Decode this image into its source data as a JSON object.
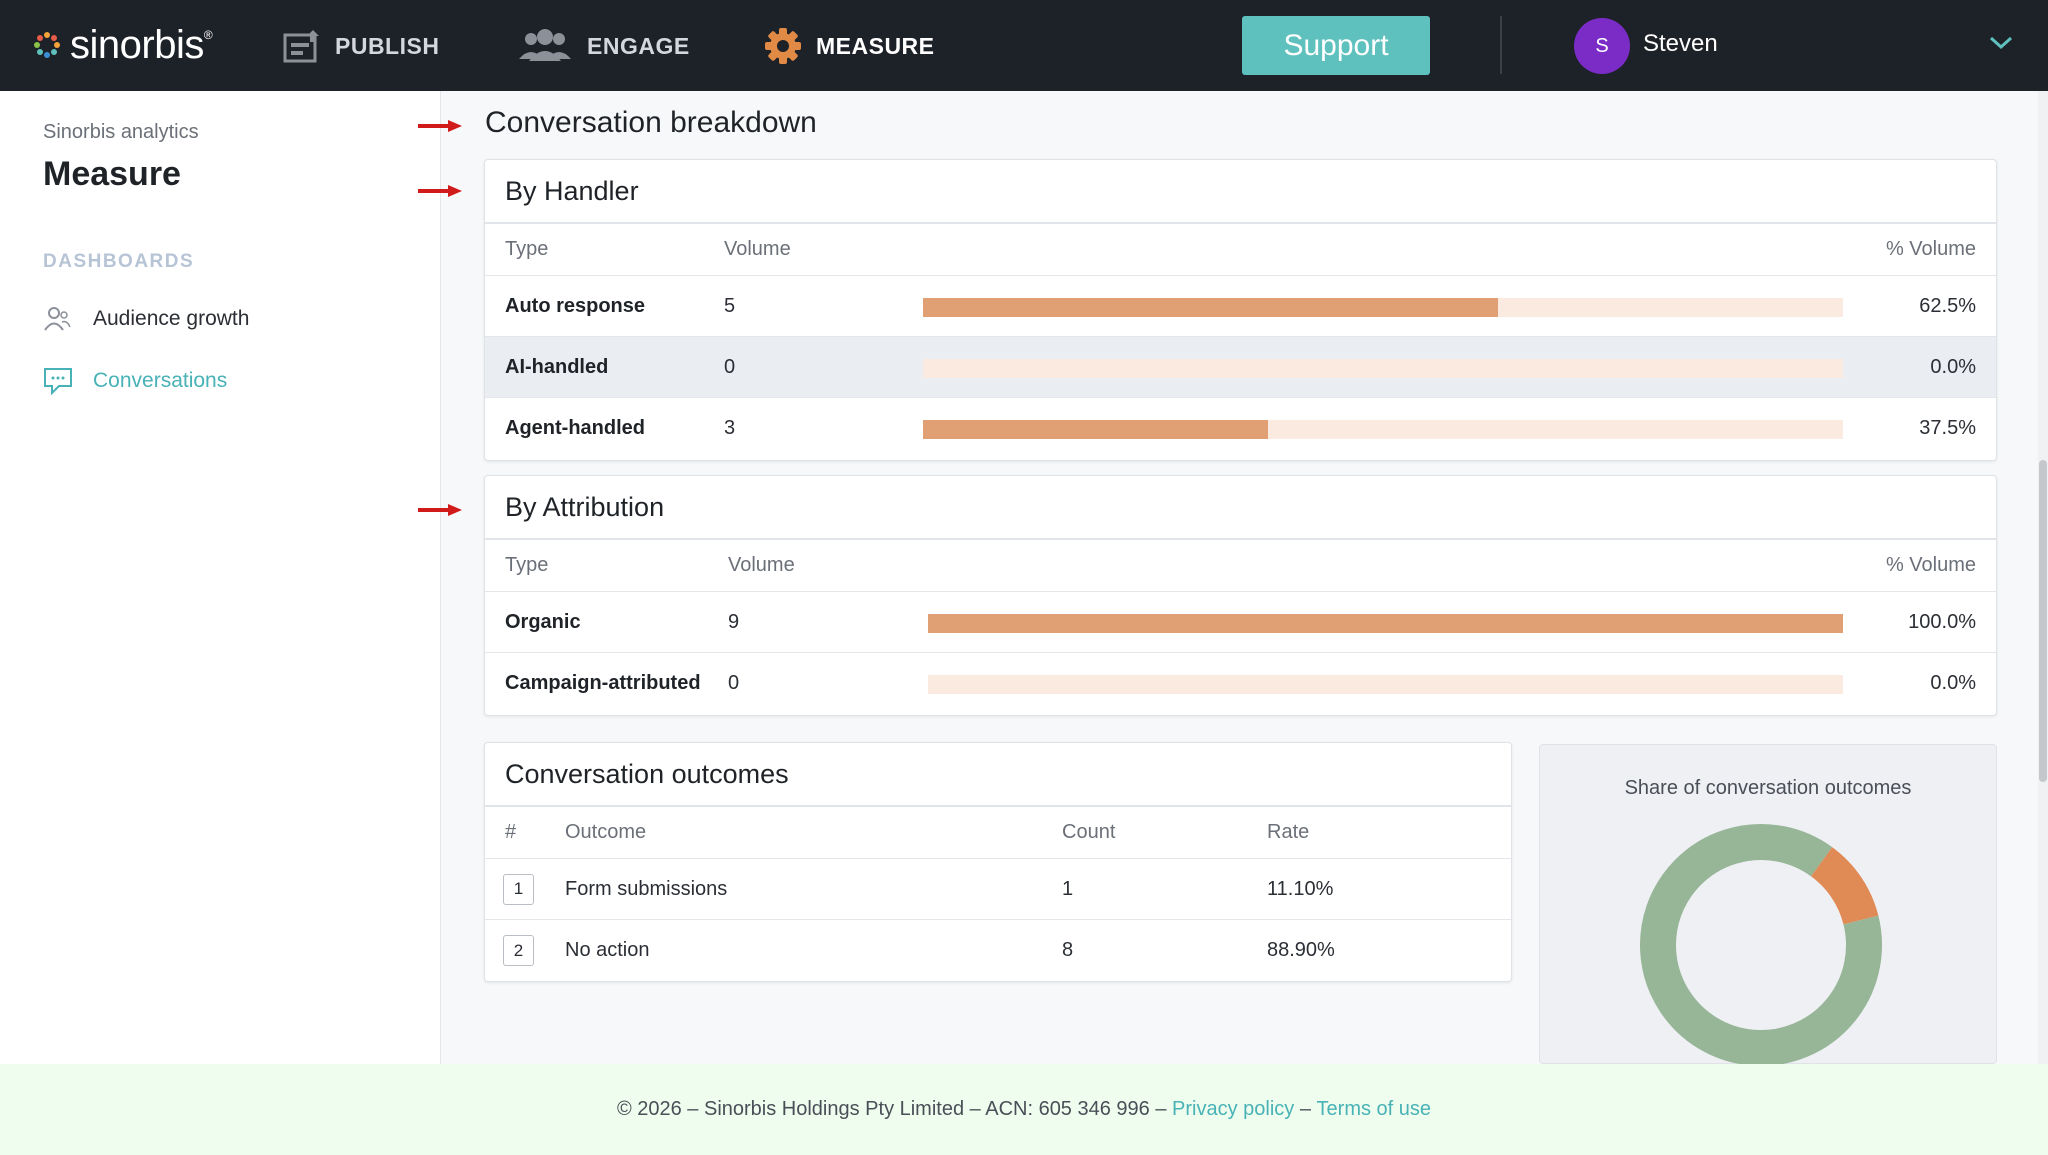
{
  "topbar": {
    "logo_text": "sinorbis",
    "logo_reg": "®",
    "nav": [
      {
        "label": "PUBLISH",
        "icon": "publish-icon",
        "active": false
      },
      {
        "label": "ENGAGE",
        "icon": "people-icon",
        "active": false
      },
      {
        "label": "MEASURE",
        "icon": "gear-icon",
        "active": true
      }
    ],
    "support_label": "Support",
    "user": {
      "initial": "S",
      "name": "Steven"
    }
  },
  "sidebar": {
    "subtitle": "Sinorbis analytics",
    "title": "Measure",
    "section": "DASHBOARDS",
    "items": [
      {
        "label": "Audience growth",
        "icon": "audience-icon",
        "active": false
      },
      {
        "label": "Conversations",
        "icon": "chat-icon",
        "active": true
      }
    ]
  },
  "main": {
    "heading": "Conversation breakdown",
    "by_handler": {
      "title": "By Handler",
      "headers": {
        "type": "Type",
        "volume": "Volume",
        "pct": "% Volume"
      },
      "rows": [
        {
          "type": "Auto response",
          "volume": "5",
          "pct": "62.5%",
          "fraction": 0.625
        },
        {
          "type": "AI-handled",
          "volume": "0",
          "pct": "0.0%",
          "fraction": 0.0
        },
        {
          "type": "Agent-handled",
          "volume": "3",
          "pct": "37.5%",
          "fraction": 0.375
        }
      ]
    },
    "by_attribution": {
      "title": "By Attribution",
      "headers": {
        "type": "Type",
        "volume": "Volume",
        "pct": "% Volume"
      },
      "rows": [
        {
          "type": "Organic",
          "volume": "9",
          "pct": "100.0%",
          "fraction": 1.0
        },
        {
          "type": "Campaign-attributed",
          "volume": "0",
          "pct": "0.0%",
          "fraction": 0.0
        }
      ]
    },
    "outcomes": {
      "title": "Conversation outcomes",
      "headers": {
        "num": "#",
        "outcome": "Outcome",
        "count": "Count",
        "rate": "Rate"
      },
      "rows": [
        {
          "num": "1",
          "outcome": "Form submissions",
          "count": "1",
          "rate": "11.10%"
        },
        {
          "num": "2",
          "outcome": "No action",
          "count": "8",
          "rate": "88.90%"
        }
      ]
    },
    "donut": {
      "title": "Share of conversation outcomes"
    }
  },
  "chart_data": {
    "type": "pie",
    "title": "Share of conversation outcomes",
    "categories": [
      "Form submissions",
      "No action"
    ],
    "values": [
      11.1,
      88.9
    ],
    "colors": [
      "#e08a55",
      "#97b597"
    ]
  },
  "colors": {
    "bar_fill": "#e0a073",
    "bar_track": "#fbeae0",
    "accent": "#5ec1bd",
    "topbar": "#1d2128",
    "avatar": "#7b2cc7"
  },
  "footer": {
    "text": "© 2026 – Sinorbis Holdings Pty Limited – ACN: 605 346 996 –",
    "privacy": "Privacy policy",
    "sep": "–",
    "terms": "Terms of use"
  }
}
